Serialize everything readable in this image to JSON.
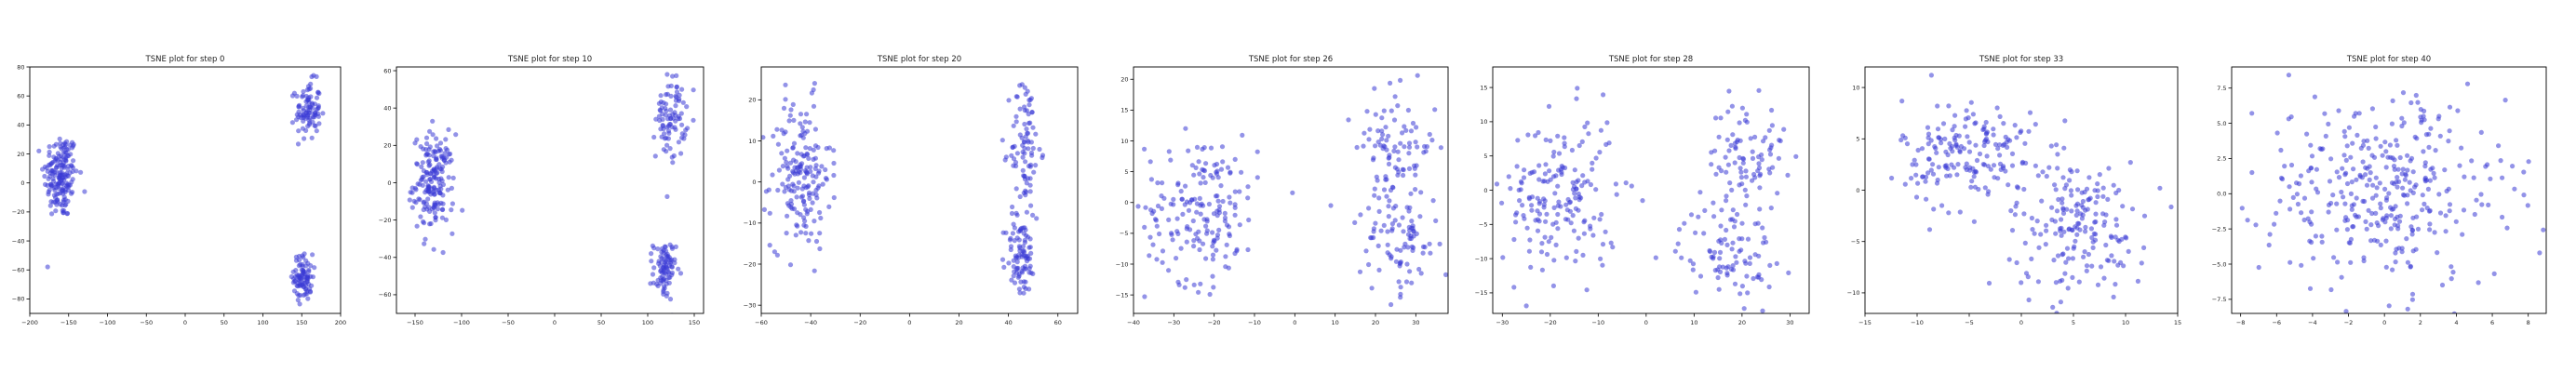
{
  "colors": {
    "point": "#3a3ad6",
    "axis": "#000000",
    "background": "#ffffff"
  },
  "chart_data": [
    {
      "type": "scatter",
      "title": "TSNE plot for step 0",
      "xlim": [
        -200,
        200
      ],
      "ylim": [
        -90,
        80
      ],
      "xticks": [
        -200,
        -150,
        -100,
        -50,
        0,
        50,
        100,
        150,
        200
      ],
      "yticks": [
        -80,
        -60,
        -40,
        -20,
        0,
        20,
        40,
        60,
        80
      ],
      "grid": false,
      "clusters": [
        {
          "cx": -160,
          "cy": 5,
          "sx": 11,
          "sy": 15,
          "n": 180
        },
        {
          "cx": 158,
          "cy": 50,
          "sx": 8,
          "sy": 10,
          "n": 90
        },
        {
          "cx": 152,
          "cy": -65,
          "sx": 6,
          "sy": 8,
          "n": 90
        }
      ]
    },
    {
      "type": "scatter",
      "title": "TSNE plot for step 10",
      "xlim": [
        -170,
        160
      ],
      "ylim": [
        -70,
        62
      ],
      "xticks": [
        -150,
        -100,
        -50,
        0,
        50,
        100,
        150
      ],
      "yticks": [
        -60,
        -40,
        -20,
        0,
        20,
        40,
        60
      ],
      "grid": false,
      "clusters": [
        {
          "cx": -130,
          "cy": 0,
          "sx": 11,
          "sy": 13,
          "n": 180
        },
        {
          "cx": 125,
          "cy": 35,
          "sx": 8,
          "sy": 11,
          "n": 90
        },
        {
          "cx": 118,
          "cy": -47,
          "sx": 6,
          "sy": 8,
          "n": 90
        }
      ]
    },
    {
      "type": "scatter",
      "title": "TSNE plot for step 20",
      "xlim": [
        -60,
        68
      ],
      "ylim": [
        -32,
        28
      ],
      "xticks": [
        -60,
        -40,
        -20,
        0,
        20,
        40,
        60
      ],
      "yticks": [
        -30,
        -20,
        -10,
        0,
        10,
        20
      ],
      "grid": false,
      "clusters": [
        {
          "cx": -44,
          "cy": 2,
          "sx": 6,
          "sy": 9,
          "n": 180
        },
        {
          "cx": 47,
          "cy": 8,
          "sx": 3,
          "sy": 9,
          "n": 90
        },
        {
          "cx": 45,
          "cy": -18,
          "sx": 3,
          "sy": 5,
          "n": 90
        }
      ]
    },
    {
      "type": "scatter",
      "title": "TSNE plot for step 26",
      "xlim": [
        -40,
        38
      ],
      "ylim": [
        -18,
        22
      ],
      "xticks": [
        -40,
        -30,
        -20,
        -10,
        0,
        10,
        20,
        30
      ],
      "yticks": [
        -15,
        -10,
        -5,
        0,
        5,
        10,
        15,
        20
      ],
      "grid": false,
      "clusters": [
        {
          "cx": -23,
          "cy": -1,
          "sx": 7,
          "sy": 6,
          "n": 180
        },
        {
          "cx": 25,
          "cy": 9,
          "sx": 5,
          "sy": 4.5,
          "n": 90
        },
        {
          "cx": 26,
          "cy": -6,
          "sx": 5,
          "sy": 4.5,
          "n": 90
        }
      ]
    },
    {
      "type": "scatter",
      "title": "TSNE plot for step 28",
      "xlim": [
        -32,
        34
      ],
      "ylim": [
        -18,
        18
      ],
      "xticks": [
        -30,
        -20,
        -10,
        0,
        10,
        20,
        30
      ],
      "yticks": [
        -15,
        -10,
        -5,
        0,
        5,
        10,
        15
      ],
      "grid": false,
      "clusters": [
        {
          "cx": -18,
          "cy": -1,
          "sx": 6,
          "sy": 6,
          "n": 180
        },
        {
          "cx": 21,
          "cy": 5,
          "sx": 4,
          "sy": 4,
          "n": 90
        },
        {
          "cx": 17,
          "cy": -9,
          "sx": 5,
          "sy": 3.5,
          "n": 90
        }
      ]
    },
    {
      "type": "scatter",
      "title": "TSNE plot for step 33",
      "xlim": [
        -15,
        15
      ],
      "ylim": [
        -12,
        12
      ],
      "xticks": [
        -15,
        -10,
        -5,
        0,
        5,
        10,
        15
      ],
      "yticks": [
        -10,
        -5,
        0,
        5,
        10
      ],
      "grid": false,
      "clusters": [
        {
          "cx": -5,
          "cy": 3.5,
          "sx": 3.2,
          "sy": 2.8,
          "n": 180
        },
        {
          "cx": 5.5,
          "cy": -3.5,
          "sx": 3.2,
          "sy": 3.2,
          "n": 180
        }
      ]
    },
    {
      "type": "scatter",
      "title": "TSNE plot for step 40",
      "xlim": [
        -8.5,
        9
      ],
      "ylim": [
        -8.5,
        9
      ],
      "xticks": [
        -8,
        -6,
        -4,
        -2,
        0,
        2,
        4,
        6,
        8
      ],
      "yticks": [
        -7.5,
        -5.0,
        -2.5,
        0.0,
        2.5,
        5.0,
        7.5
      ],
      "grid": false,
      "clusters": [
        {
          "cx": 0,
          "cy": 0.3,
          "sx": 3.4,
          "sy": 3.4,
          "n": 360
        }
      ]
    }
  ]
}
